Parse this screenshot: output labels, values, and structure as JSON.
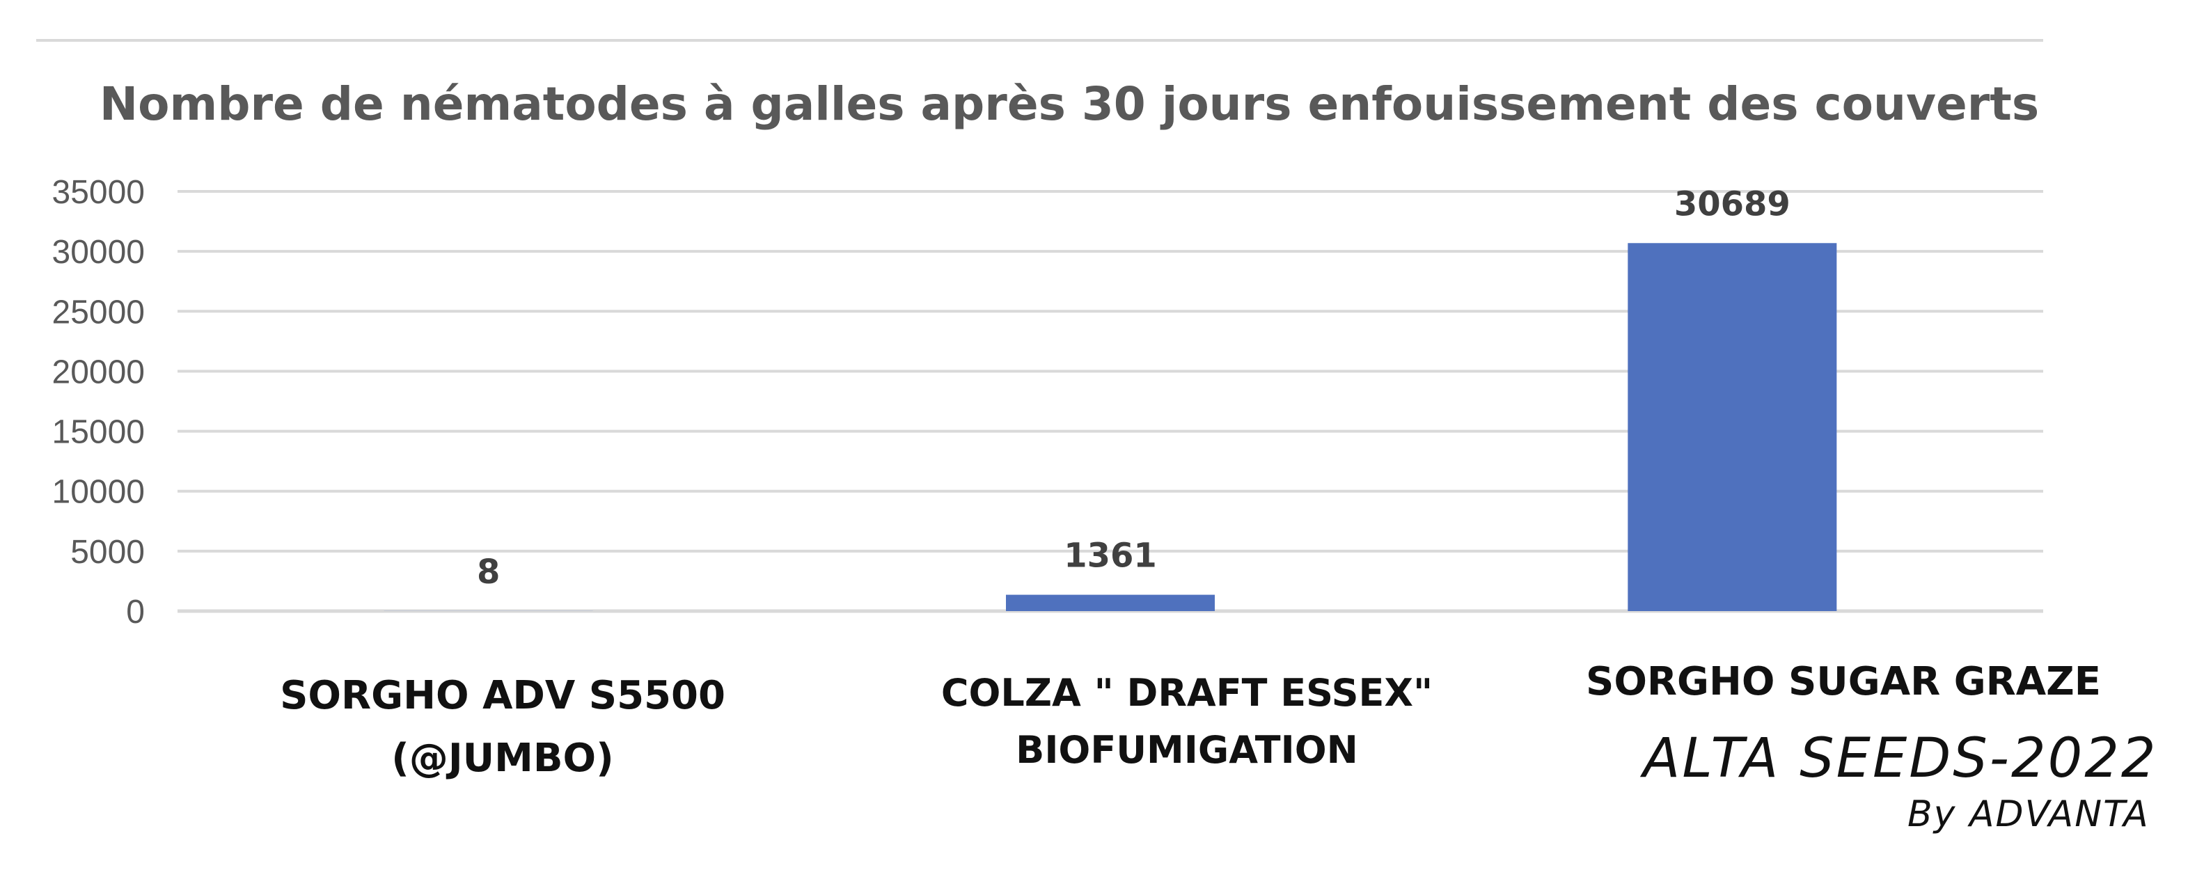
{
  "chart_data": {
    "type": "bar",
    "title": "Nombre de nématodes à galles après 30 jours enfouissement des couverts",
    "categories": [
      "SORGHO ADV S5500 (@JUMBO)",
      "COLZA \" DRAFT ESSEX\" BIOFUMIGATION",
      "SORGHO SUGAR GRAZE"
    ],
    "category_lines": [
      [
        "SORGHO ADV S5500",
        "(@JUMBO)"
      ],
      [
        "COLZA \" DRAFT ESSEX\"",
        "BIOFUMIGATION"
      ],
      [
        "SORGHO SUGAR GRAZE"
      ]
    ],
    "values": [
      8,
      1361,
      30689
    ],
    "data_labels": [
      "8",
      "1361",
      "30689"
    ],
    "ylim": [
      0,
      35000
    ],
    "yticks": [
      "0",
      "5000",
      "10000",
      "15000",
      "20000",
      "25000",
      "30000",
      "35000"
    ],
    "xlabel": "",
    "ylabel": "",
    "grid": true,
    "legend": "none",
    "bar_color": "#4f71be",
    "title_color": "#595959",
    "tick_color": "#595959",
    "gridline_color": "#d9d9d9"
  },
  "brand": {
    "name": "ALTA SEEDS-2022",
    "byline": "By ADVANTA"
  }
}
